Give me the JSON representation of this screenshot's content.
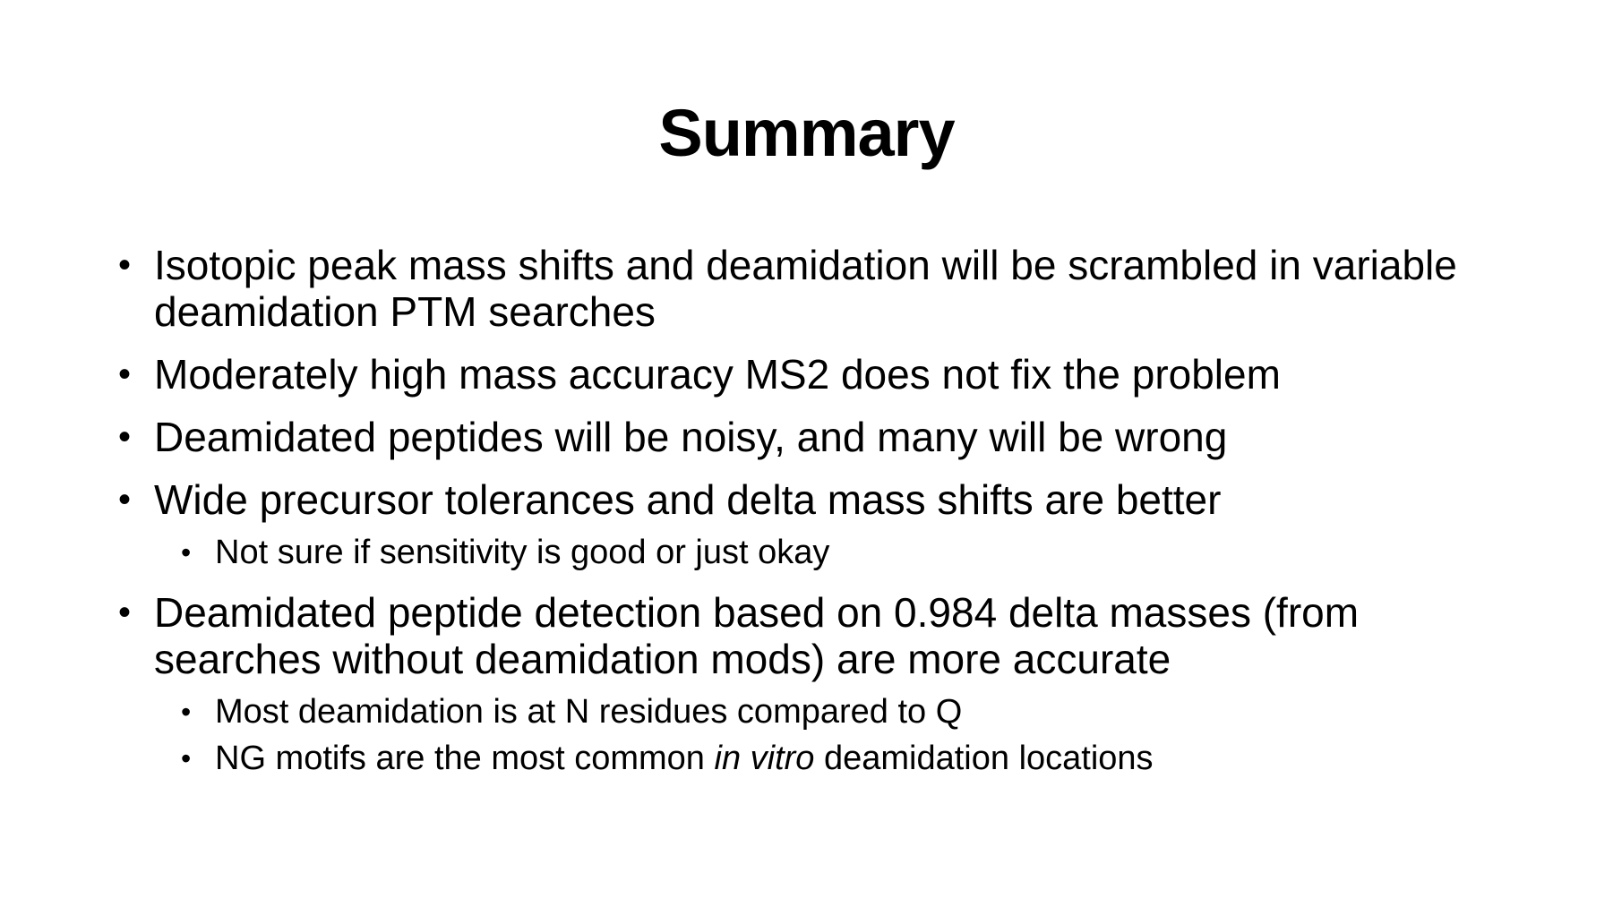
{
  "slide": {
    "title": "Summary",
    "bullet_glyph": "•",
    "items": [
      {
        "text": "Isotopic peak mass shifts and deamidation will be scrambled in variable deamidation PTM searches",
        "subitems": []
      },
      {
        "text": "Moderately high mass accuracy MS2 does not fix the problem",
        "subitems": []
      },
      {
        "text": "Deamidated peptides will be noisy, and many will be wrong",
        "subitems": []
      },
      {
        "text": "Wide precursor tolerances and delta mass shifts are better",
        "subitems": [
          {
            "text": "Not sure if sensitivity is good or just okay"
          }
        ]
      },
      {
        "text": "Deamidated peptide detection based on 0.984 delta masses (from searches without deamidation mods) are more accurate",
        "subitems": [
          {
            "text": "Most deamidation is at N residues compared to Q"
          },
          {
            "text_before": "NG motifs are the most common ",
            "text_italic": "in vitro",
            "text_after": " deamidation locations"
          }
        ]
      }
    ]
  }
}
